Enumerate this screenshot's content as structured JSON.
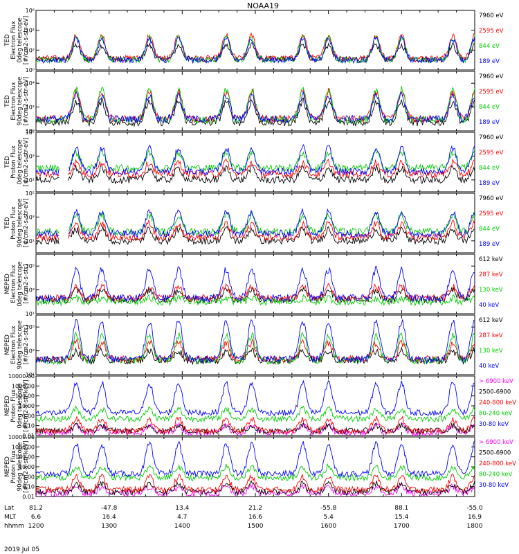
{
  "chart_data": {
    "type": "line",
    "title": "NOAA19",
    "date_label": "2019 Jul 05",
    "time_axis": {
      "start": "12:00",
      "end": "18:00",
      "rows": [
        {
          "label": "Lat",
          "values": [
            "81.2",
            "-47.8",
            "13.4",
            "21.2",
            "-55.8",
            "88.1",
            "-55.0"
          ]
        },
        {
          "label": "MLT",
          "values": [
            "6.6",
            "16.4",
            "4.7",
            "16.6",
            "5.4",
            "15.4",
            "16.9"
          ]
        },
        {
          "label": "hhmm",
          "values": [
            "1200",
            "1300",
            "1400",
            "1500",
            "1600",
            "1700",
            "1800"
          ]
        }
      ]
    },
    "panels": [
      {
        "ylabel": [
          "TED",
          "Electron Flux",
          "0deg telescope",
          "[#/cm2-s-str-eV]"
        ],
        "scale": "log",
        "ylim": [
          1,
          1000000
        ],
        "ticks": [
          {
            "v": 1,
            "t": "10⁰"
          },
          {
            "v": 100,
            "t": "10²"
          },
          {
            "v": 10000,
            "t": "10⁴"
          },
          {
            "v": 1000000,
            "t": "10⁶"
          }
        ],
        "series": [
          {
            "name": "7960 eV",
            "color": "#000000",
            "baseline": 12,
            "peak": 300,
            "profile": "ted_e"
          },
          {
            "name": "2595 eV",
            "color": "#ff0000",
            "baseline": 15,
            "peak": 3000,
            "profile": "ted_e"
          },
          {
            "name": "844 eV",
            "color": "#00cc00",
            "baseline": 10,
            "peak": 2000,
            "profile": "ted_e"
          },
          {
            "name": "189 eV",
            "color": "#0000ff",
            "baseline": 10,
            "peak": 1500,
            "profile": "ted_e"
          }
        ]
      },
      {
        "ylabel": [
          "TED",
          "Electron Flux",
          "90deg telescope",
          "[#/cm2-s-str-eV]"
        ],
        "scale": "log",
        "ylim": [
          1,
          100000
        ],
        "ticks": [
          {
            "v": 1,
            "t": "10⁰"
          },
          {
            "v": 100,
            "t": "10²"
          },
          {
            "v": 10000,
            "t": "10⁴"
          }
        ],
        "series": [
          {
            "name": "7960 eV",
            "color": "#000000",
            "baseline": 5,
            "peak": 300,
            "profile": "ted_e"
          },
          {
            "name": "2595 eV",
            "color": "#ff0000",
            "baseline": 10,
            "peak": 2000,
            "profile": "ted_e"
          },
          {
            "name": "844 eV",
            "color": "#00cc00",
            "baseline": 8,
            "peak": 3000,
            "profile": "ted_e"
          },
          {
            "name": "189 eV",
            "color": "#0000ff",
            "baseline": 10,
            "peak": 1000,
            "profile": "ted_e"
          }
        ]
      },
      {
        "ylabel": [
          "TED",
          "Proton Flux",
          "0deg telescope",
          "[#/cm2-s-str-eV]"
        ],
        "scale": "log",
        "ylim": [
          1,
          100000
        ],
        "ticks": [
          {
            "v": 10,
            "t": "10¹"
          },
          {
            "v": 1000,
            "t": "10³"
          },
          {
            "v": 100000,
            "t": "10⁵"
          }
        ],
        "series": [
          {
            "name": "7960 eV",
            "color": "#000000",
            "baseline": 10,
            "peak": 100,
            "profile": "ted_p"
          },
          {
            "name": "2595 eV",
            "color": "#ff0000",
            "baseline": 30,
            "peak": 300,
            "profile": "ted_p"
          },
          {
            "name": "844 eV",
            "color": "#00cc00",
            "baseline": 100,
            "peak": 2000,
            "profile": "ted_p"
          },
          {
            "name": "189 eV",
            "color": "#0000ff",
            "baseline": 50,
            "peak": 5000,
            "profile": "ted_p"
          }
        ]
      },
      {
        "ylabel": [
          "TED",
          "Proton Flux",
          "90deg telescope",
          "[#/cm2-s-str-eV]"
        ],
        "scale": "log",
        "ylim": [
          1,
          100000
        ],
        "ticks": [
          {
            "v": 10,
            "t": "10¹"
          },
          {
            "v": 1000,
            "t": "10³"
          },
          {
            "v": 100000,
            "t": "10⁵"
          }
        ],
        "series": [
          {
            "name": "7960 eV",
            "color": "#000000",
            "baseline": 10,
            "peak": 100,
            "profile": "ted_p"
          },
          {
            "name": "2595 eV",
            "color": "#ff0000",
            "baseline": 20,
            "peak": 300,
            "profile": "ted_p"
          },
          {
            "name": "844 eV",
            "color": "#00cc00",
            "baseline": 60,
            "peak": 1500,
            "profile": "ted_p"
          },
          {
            "name": "189 eV",
            "color": "#0000ff",
            "baseline": 40,
            "peak": 3000,
            "profile": "ted_p"
          }
        ]
      },
      {
        "ylabel": [
          "MEPED",
          "Electron Flux",
          "0deg telescope",
          "[#/cm2-s-str]"
        ],
        "scale": "log",
        "ylim": [
          10,
          1000000
        ],
        "ticks": [
          {
            "v": 10,
            "t": "10¹"
          },
          {
            "v": 1000,
            "t": "10³"
          },
          {
            "v": 100000,
            "t": "10⁵"
          }
        ],
        "series": [
          {
            "name": "612 keV",
            "color": "#000000",
            "baseline": 150,
            "peak": 1000,
            "profile": "mep0"
          },
          {
            "name": "287 keV",
            "color": "#ff0000",
            "baseline": 200,
            "peak": 2000,
            "profile": "mep0"
          },
          {
            "name": "130 keV",
            "color": "#00cc00",
            "baseline": 100,
            "peak": 200,
            "profile": "mep0"
          },
          {
            "name": "40 keV",
            "color": "#0000ff",
            "baseline": 200,
            "peak": 50000,
            "profile": "mep0"
          }
        ]
      },
      {
        "ylabel": [
          "MEPED",
          "Electron Flux",
          "90deg telescope",
          "[#/cm2-s-str]"
        ],
        "scale": "log",
        "ylim": [
          10,
          1000000
        ],
        "ticks": [
          {
            "v": 10,
            "t": "10¹"
          },
          {
            "v": 1000,
            "t": "10³"
          },
          {
            "v": 100000,
            "t": "10⁵"
          }
        ],
        "series": [
          {
            "name": "612 keV",
            "color": "#000000",
            "baseline": 150,
            "peak": 1000,
            "profile": "mep90"
          },
          {
            "name": "287 keV",
            "color": "#ff0000",
            "baseline": 200,
            "peak": 5000,
            "profile": "mep90"
          },
          {
            "name": "130 keV",
            "color": "#00cc00",
            "baseline": 150,
            "peak": 20000,
            "profile": "mep90"
          },
          {
            "name": "40 keV",
            "color": "#0000ff",
            "baseline": 200,
            "peak": 300000,
            "profile": "mep90"
          }
        ]
      },
      {
        "ylabel": [
          "MEPED",
          "Proton Flux",
          "0deg telescope",
          "[#/cm2-s-str-keV]"
        ],
        "scale": "log",
        "ylim": [
          0.01,
          10000
        ],
        "ticks": [
          {
            "v": 0.01,
            "t": "0.01"
          },
          {
            "v": 0.1,
            "t": "0.10"
          },
          {
            "v": 1,
            "t": "1.00"
          },
          {
            "v": 10,
            "t": "10.00"
          },
          {
            "v": 100,
            "t": "100.00"
          },
          {
            "v": 1000,
            "t": "1000.00"
          },
          {
            "v": 10000,
            "t": "10000.00"
          }
        ],
        "series": [
          {
            "name": "> 6900 keV",
            "color": "#ff00ff",
            "baseline": 0.02,
            "peak": 0.1,
            "profile": "pro"
          },
          {
            "name": "2500-6900",
            "color": "#000000",
            "baseline": 0.03,
            "peak": 0.1,
            "profile": "pro"
          },
          {
            "name": "240-800 keV",
            "color": "#ff0000",
            "baseline": 0.03,
            "peak": 0.5,
            "profile": "pro"
          },
          {
            "name": "80-240 keV",
            "color": "#00cc00",
            "baseline": 0.5,
            "peak": 5,
            "profile": "pro"
          },
          {
            "name": "30-80 keV",
            "color": "#0000ff",
            "baseline": 2,
            "peak": 2000,
            "profile": "pro"
          }
        ]
      },
      {
        "ylabel": [
          "MEPED",
          "Proton Flux",
          "90deg telescope",
          "[#/cm2-s-str-keV]"
        ],
        "scale": "log",
        "ylim": [
          0.01,
          10000
        ],
        "ticks": [
          {
            "v": 0.01,
            "t": "0.01"
          },
          {
            "v": 0.1,
            "t": "0.10"
          },
          {
            "v": 1,
            "t": "1.00"
          },
          {
            "v": 10,
            "t": "10.00"
          },
          {
            "v": 100,
            "t": "100.00"
          },
          {
            "v": 1000,
            "t": "1000.00"
          },
          {
            "v": 10000,
            "t": "10000.00"
          }
        ],
        "series": [
          {
            "name": "> 6900 keV",
            "color": "#ff00ff",
            "baseline": 0.02,
            "peak": 0.1,
            "profile": "pro"
          },
          {
            "name": "2500-6900",
            "color": "#000000",
            "baseline": 0.03,
            "peak": 0.2,
            "profile": "pro"
          },
          {
            "name": "240-800 keV",
            "color": "#ff0000",
            "baseline": 0.05,
            "peak": 1,
            "profile": "pro"
          },
          {
            "name": "80-240 keV",
            "color": "#00cc00",
            "baseline": 0.8,
            "peak": 10,
            "profile": "pro"
          },
          {
            "name": "30-80 keV",
            "color": "#0000ff",
            "baseline": 2,
            "peak": 2000,
            "profile": "pro"
          }
        ]
      }
    ],
    "event_centers_hours": [
      0.55,
      0.9,
      1.55,
      1.95,
      2.6,
      2.95,
      3.65,
      4.0,
      4.65,
      5.0,
      5.7,
      6.0
    ],
    "grid": false,
    "legend": "right"
  }
}
